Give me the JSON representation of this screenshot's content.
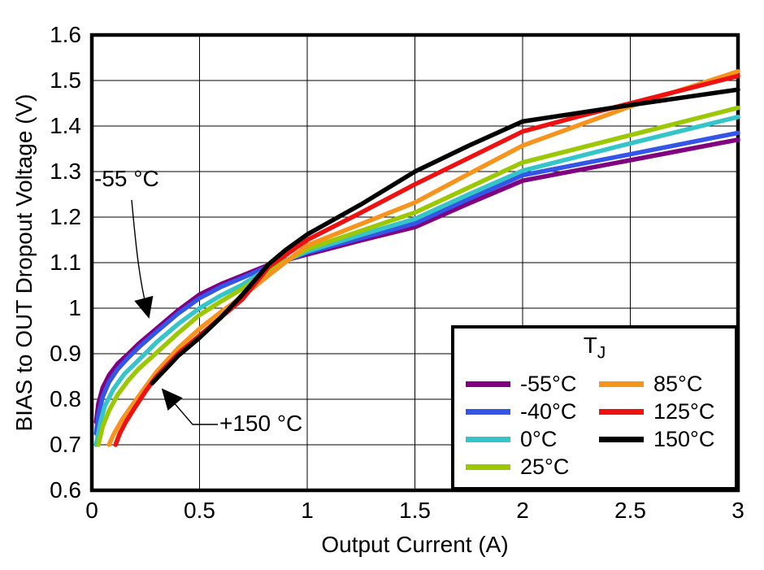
{
  "chart_data": {
    "type": "line",
    "title": "",
    "xlabel": "Output Current (A)",
    "ylabel": "BIAS to OUT Dropout Voltage (V)",
    "xlim": [
      0,
      3
    ],
    "ylim": [
      0.6,
      1.6
    ],
    "xticks": [
      "0",
      "0.5",
      "1",
      "1.5",
      "2",
      "2.5",
      "3"
    ],
    "yticks": [
      "0.6",
      "0.7",
      "0.8",
      "0.9",
      "1",
      "1.1",
      "1.2",
      "1.3",
      "1.4",
      "1.5",
      "1.6"
    ],
    "grid": true,
    "frame_color": "#000000",
    "legend": {
      "position": "lower right",
      "title_main": "T",
      "title_sub": "J",
      "column_split": 4
    },
    "series": [
      {
        "name": "-55°C",
        "color": "#800080",
        "points": [
          [
            0.02,
            0.75
          ],
          [
            0.03,
            0.79
          ],
          [
            0.05,
            0.825
          ],
          [
            0.08,
            0.853
          ],
          [
            0.12,
            0.878
          ],
          [
            0.17,
            0.9
          ],
          [
            0.22,
            0.923
          ],
          [
            0.3,
            0.955
          ],
          [
            0.4,
            0.995
          ],
          [
            0.5,
            1.03
          ],
          [
            0.6,
            1.053
          ],
          [
            0.7,
            1.072
          ],
          [
            0.82,
            1.095
          ],
          [
            1.0,
            1.118
          ],
          [
            1.25,
            1.149
          ],
          [
            1.5,
            1.178
          ],
          [
            1.75,
            1.23
          ],
          [
            2.0,
            1.28
          ],
          [
            2.5,
            1.325
          ],
          [
            3.0,
            1.37
          ]
        ]
      },
      {
        "name": "-40°C",
        "color": "#3355E8",
        "points": [
          [
            0.02,
            0.725
          ],
          [
            0.03,
            0.765
          ],
          [
            0.05,
            0.805
          ],
          [
            0.08,
            0.838
          ],
          [
            0.12,
            0.866
          ],
          [
            0.17,
            0.892
          ],
          [
            0.22,
            0.915
          ],
          [
            0.3,
            0.948
          ],
          [
            0.4,
            0.988
          ],
          [
            0.5,
            1.022
          ],
          [
            0.6,
            1.047
          ],
          [
            0.7,
            1.067
          ],
          [
            0.82,
            1.092
          ],
          [
            1.0,
            1.122
          ],
          [
            1.25,
            1.154
          ],
          [
            1.5,
            1.186
          ],
          [
            1.75,
            1.24
          ],
          [
            2.0,
            1.292
          ],
          [
            2.5,
            1.338
          ],
          [
            3.0,
            1.385
          ]
        ]
      },
      {
        "name": "0°C",
        "color": "#35C4C8",
        "points": [
          [
            0.02,
            0.7
          ],
          [
            0.04,
            0.75
          ],
          [
            0.06,
            0.785
          ],
          [
            0.1,
            0.822
          ],
          [
            0.15,
            0.855
          ],
          [
            0.2,
            0.878
          ],
          [
            0.3,
            0.925
          ],
          [
            0.4,
            0.965
          ],
          [
            0.5,
            1.0
          ],
          [
            0.6,
            1.028
          ],
          [
            0.7,
            1.052
          ],
          [
            0.82,
            1.088
          ],
          [
            1.0,
            1.125
          ],
          [
            1.25,
            1.161
          ],
          [
            1.5,
            1.196
          ],
          [
            1.75,
            1.25
          ],
          [
            2.0,
            1.302
          ],
          [
            2.5,
            1.362
          ],
          [
            3.0,
            1.42
          ]
        ]
      },
      {
        "name": "25°C",
        "color": "#9BC800",
        "points": [
          [
            0.03,
            0.7
          ],
          [
            0.05,
            0.74
          ],
          [
            0.08,
            0.775
          ],
          [
            0.12,
            0.81
          ],
          [
            0.17,
            0.842
          ],
          [
            0.22,
            0.868
          ],
          [
            0.3,
            0.902
          ],
          [
            0.4,
            0.945
          ],
          [
            0.5,
            0.985
          ],
          [
            0.6,
            1.015
          ],
          [
            0.7,
            1.043
          ],
          [
            0.82,
            1.082
          ],
          [
            1.0,
            1.13
          ],
          [
            1.25,
            1.17
          ],
          [
            1.5,
            1.21
          ],
          [
            1.75,
            1.265
          ],
          [
            2.0,
            1.32
          ],
          [
            2.5,
            1.38
          ],
          [
            3.0,
            1.44
          ]
        ]
      },
      {
        "name": "85°C",
        "color": "#F7941E",
        "points": [
          [
            0.08,
            0.7
          ],
          [
            0.1,
            0.722
          ],
          [
            0.14,
            0.755
          ],
          [
            0.18,
            0.782
          ],
          [
            0.25,
            0.828
          ],
          [
            0.3,
            0.86
          ],
          [
            0.4,
            0.912
          ],
          [
            0.5,
            0.955
          ],
          [
            0.6,
            0.992
          ],
          [
            0.7,
            1.026
          ],
          [
            0.82,
            1.072
          ],
          [
            1.0,
            1.138
          ],
          [
            1.25,
            1.185
          ],
          [
            1.5,
            1.232
          ],
          [
            1.75,
            1.295
          ],
          [
            2.0,
            1.357
          ],
          [
            2.5,
            1.443
          ],
          [
            3.0,
            1.52
          ]
        ]
      },
      {
        "name": "125°C",
        "color": "#EE1111",
        "points": [
          [
            0.11,
            0.7
          ],
          [
            0.13,
            0.725
          ],
          [
            0.16,
            0.752
          ],
          [
            0.2,
            0.782
          ],
          [
            0.25,
            0.818
          ],
          [
            0.3,
            0.85
          ],
          [
            0.4,
            0.9
          ],
          [
            0.5,
            0.94
          ],
          [
            0.6,
            0.98
          ],
          [
            0.7,
            1.02
          ],
          [
            0.82,
            1.09
          ],
          [
            1.0,
            1.15
          ],
          [
            1.25,
            1.21
          ],
          [
            1.5,
            1.272
          ],
          [
            1.75,
            1.33
          ],
          [
            2.0,
            1.388
          ],
          [
            2.25,
            1.42
          ],
          [
            2.5,
            1.45
          ],
          [
            2.75,
            1.48
          ],
          [
            3.0,
            1.51
          ]
        ]
      },
      {
        "name": "150°C",
        "color": "#000000",
        "points": [
          [
            0.28,
            0.835
          ],
          [
            0.4,
            0.895
          ],
          [
            0.5,
            0.935
          ],
          [
            0.6,
            0.98
          ],
          [
            0.7,
            1.03
          ],
          [
            0.82,
            1.096
          ],
          [
            0.9,
            1.128
          ],
          [
            1.0,
            1.162
          ],
          [
            1.25,
            1.228
          ],
          [
            1.5,
            1.3
          ],
          [
            1.75,
            1.357
          ],
          [
            2.0,
            1.41
          ],
          [
            2.25,
            1.428
          ],
          [
            2.5,
            1.446
          ],
          [
            2.75,
            1.463
          ],
          [
            3.0,
            1.48
          ]
        ]
      }
    ],
    "annotations": [
      {
        "text": "-55 °C"
      },
      {
        "text": "+150 °C"
      }
    ]
  }
}
